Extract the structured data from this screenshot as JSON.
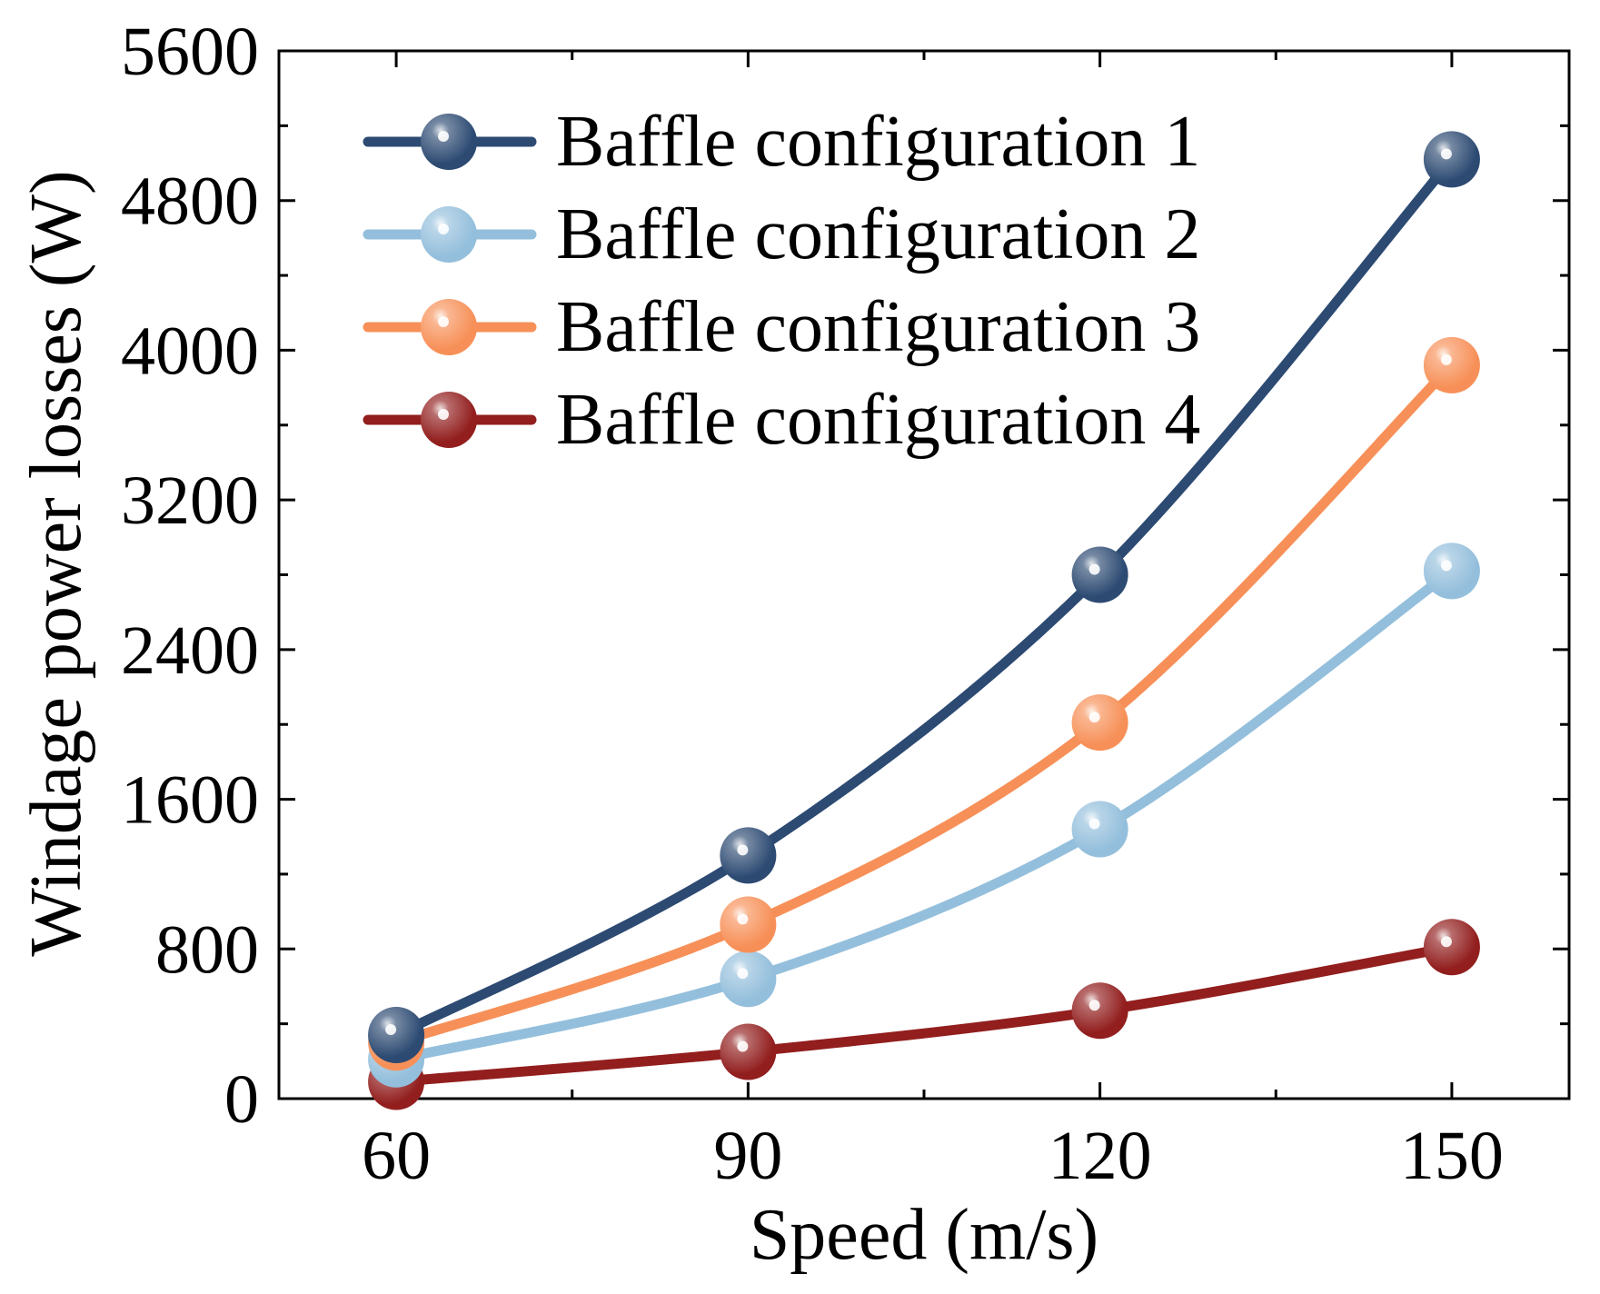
{
  "chart_data": {
    "type": "line",
    "title": "",
    "xlabel": "Speed (m/s)",
    "ylabel": "Windage power losses (W)",
    "x": [
      60,
      90,
      120,
      150
    ],
    "xlim": [
      50,
      160
    ],
    "ylim": [
      0,
      5600
    ],
    "xticks": [
      60,
      90,
      120,
      150
    ],
    "yticks": [
      0,
      800,
      1600,
      2400,
      3200,
      4000,
      4800,
      5600
    ],
    "grid": false,
    "legend_position": "top-left",
    "series": [
      {
        "name": "Baffle configuration 1",
        "color": "#2c4a72",
        "values": [
          340,
          1300,
          2800,
          5020
        ]
      },
      {
        "name": "Baffle configuration 2",
        "color": "#94bfdc",
        "values": [
          210,
          640,
          1440,
          2820
        ]
      },
      {
        "name": "Baffle configuration 3",
        "color": "#f79058",
        "values": [
          300,
          930,
          2010,
          3920
        ]
      },
      {
        "name": "Baffle configuration 4",
        "color": "#921e1e",
        "values": [
          90,
          250,
          470,
          810
        ]
      }
    ]
  }
}
